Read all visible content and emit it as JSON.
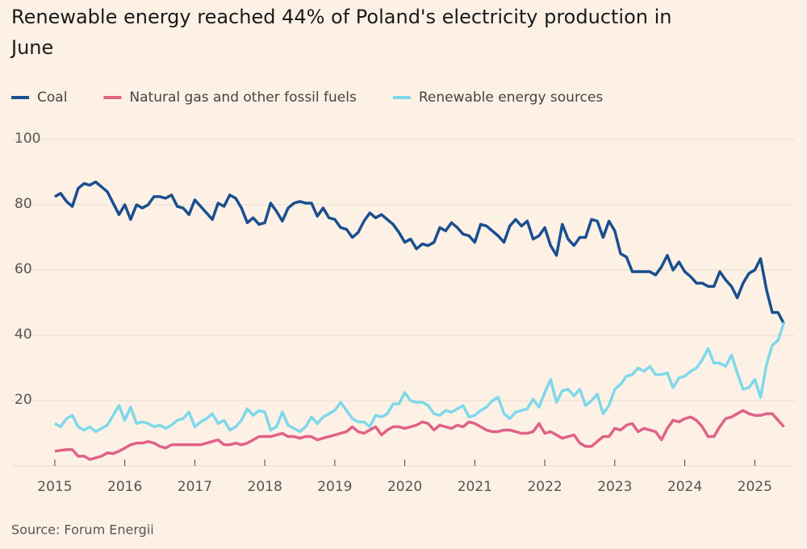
{
  "chart_data": {
    "type": "line",
    "title_lines": [
      "Renewable energy reached 44% of Poland's electricity production in",
      "June"
    ],
    "source": "Source: Forum Energii",
    "x": [
      2015,
      2015.083,
      2015.167,
      2015.25,
      2015.333,
      2015.417,
      2015.5,
      2015.583,
      2015.667,
      2015.75,
      2015.833,
      2015.917,
      2016,
      2016.083,
      2016.167,
      2016.25,
      2016.333,
      2016.417,
      2016.5,
      2016.583,
      2016.667,
      2016.75,
      2016.833,
      2016.917,
      2017,
      2017.083,
      2017.167,
      2017.25,
      2017.333,
      2017.417,
      2017.5,
      2017.583,
      2017.667,
      2017.75,
      2017.833,
      2017.917,
      2018,
      2018.083,
      2018.167,
      2018.25,
      2018.333,
      2018.417,
      2018.5,
      2018.583,
      2018.667,
      2018.75,
      2018.833,
      2018.917,
      2019,
      2019.083,
      2019.167,
      2019.25,
      2019.333,
      2019.417,
      2019.5,
      2019.583,
      2019.667,
      2019.75,
      2019.833,
      2019.917,
      2020,
      2020.083,
      2020.167,
      2020.25,
      2020.333,
      2020.417,
      2020.5,
      2020.583,
      2020.667,
      2020.75,
      2020.833,
      2020.917,
      2021,
      2021.083,
      2021.167,
      2021.25,
      2021.333,
      2021.417,
      2021.5,
      2021.583,
      2021.667,
      2021.75,
      2021.833,
      2021.917,
      2022,
      2022.083,
      2022.167,
      2022.25,
      2022.333,
      2022.417,
      2022.5,
      2022.583,
      2022.667,
      2022.75,
      2022.833,
      2022.917,
      2023,
      2023.083,
      2023.167,
      2023.25,
      2023.333,
      2023.417,
      2023.5,
      2023.583,
      2023.667,
      2023.75,
      2023.833,
      2023.917,
      2024,
      2024.083,
      2024.167,
      2024.25,
      2024.333,
      2024.417,
      2024.5,
      2024.583,
      2024.667,
      2024.75,
      2024.833,
      2024.917,
      2025,
      2025.083,
      2025.167,
      2025.25,
      2025.333,
      2025.417
    ],
    "series": [
      {
        "name": "Coal",
        "color": "#1a4f8f",
        "values": [
          82.5,
          83.5,
          81,
          79.5,
          85,
          86.5,
          86,
          87,
          85.5,
          84,
          80.5,
          77,
          80,
          75.5,
          80,
          79,
          80,
          82.5,
          82.5,
          82,
          83,
          79.5,
          79,
          77,
          81.5,
          79.5,
          77.5,
          75.5,
          80.5,
          79.5,
          83,
          82,
          79,
          74.5,
          76,
          74,
          74.5,
          80.5,
          78,
          75,
          79,
          80.5,
          81,
          80.5,
          80.5,
          76.5,
          79,
          76,
          75.5,
          73,
          72.5,
          70,
          71.5,
          75,
          77.5,
          76,
          77,
          75.5,
          74,
          71.5,
          68.5,
          69.5,
          66.5,
          68,
          67.5,
          68.5,
          73,
          72,
          74.5,
          73,
          71,
          70.5,
          68.5,
          74,
          73.5,
          72,
          70.5,
          68.5,
          73.5,
          75.5,
          73.5,
          75,
          69.5,
          70.5,
          73,
          67.5,
          64.5,
          74,
          69.5,
          67.5,
          70,
          70,
          75.5,
          75,
          70,
          75,
          72,
          65,
          64,
          59.5,
          59.5,
          59.5,
          59.5,
          58.5,
          61,
          64.5,
          60,
          62.5,
          59.5,
          58,
          56,
          56,
          55,
          55,
          59.5,
          57,
          55,
          51.5,
          56,
          59,
          60,
          63.5,
          54,
          47,
          47,
          43.5
        ]
      },
      {
        "name": "Natural gas and other fossil fuels",
        "color": "#e06287",
        "values": [
          4.5,
          4.8,
          5,
          5,
          3,
          3,
          2,
          2.5,
          3,
          4,
          3.8,
          4.5,
          5.5,
          6.5,
          7,
          7,
          7.5,
          7,
          6,
          5.5,
          6.5,
          6.5,
          6.5,
          6.5,
          6.5,
          6.5,
          7,
          7.5,
          8,
          6.5,
          6.5,
          7,
          6.5,
          7,
          8,
          9,
          9,
          9,
          9.5,
          10,
          9,
          9,
          8.5,
          9,
          9,
          8,
          8.5,
          9,
          9.5,
          10,
          10.5,
          12,
          10.5,
          10,
          11,
          12,
          9.5,
          11,
          12,
          12,
          11.5,
          12,
          12.5,
          13.5,
          13,
          11,
          12.5,
          12,
          11.5,
          12.5,
          12,
          13.5,
          13,
          12,
          11,
          10.5,
          10.5,
          11,
          11,
          10.5,
          10,
          10,
          10.5,
          13,
          10,
          10.5,
          9.5,
          8.5,
          9,
          9.5,
          7,
          6,
          6,
          7.5,
          9,
          9,
          11.5,
          11,
          12.5,
          13,
          10.5,
          11.5,
          11,
          10.5,
          8,
          11.5,
          14,
          13.5,
          14.5,
          15,
          14,
          12,
          9,
          9,
          12,
          14.5,
          15,
          16,
          17,
          16,
          15.5,
          15.5,
          16,
          16,
          14,
          12
        ]
      },
      {
        "name": "Renewable energy sources",
        "color": "#7fd8ea",
        "values": [
          13,
          12,
          14.5,
          15.5,
          12,
          11,
          12,
          10.5,
          11.5,
          12.5,
          15.5,
          18.5,
          14,
          18,
          13,
          13.5,
          13,
          12,
          12.5,
          11.5,
          12.5,
          14,
          14.5,
          16.5,
          12,
          13.5,
          14.5,
          16,
          13,
          14,
          11,
          12,
          14,
          17.5,
          15.5,
          17,
          16.5,
          11,
          12,
          16.5,
          12.5,
          11.5,
          10.5,
          12,
          15,
          13,
          15,
          16,
          17,
          19.5,
          17,
          14.5,
          13.5,
          13.5,
          12,
          15.5,
          15,
          16,
          19,
          19,
          22.5,
          20,
          19.5,
          19.5,
          18.5,
          16,
          15.5,
          17,
          16.5,
          17.5,
          18.5,
          15,
          15.5,
          17,
          18,
          20,
          21,
          16,
          14.5,
          16.5,
          17,
          17.5,
          20.5,
          18,
          22.5,
          26.5,
          19.5,
          23,
          23.5,
          21.5,
          23.5,
          18.5,
          20,
          22,
          16,
          18.5,
          23.5,
          25,
          27.5,
          28,
          30,
          29,
          30.5,
          28,
          28,
          28.5,
          24,
          27,
          27.5,
          29,
          30,
          32.5,
          36,
          31.5,
          31.5,
          30.5,
          34,
          28.5,
          23.5,
          24,
          26.5,
          21,
          31,
          37,
          38.5,
          44
        ]
      }
    ],
    "xlim": [
      2014.92,
      2025.55
    ],
    "xticks": [
      2015,
      2016,
      2017,
      2018,
      2019,
      2020,
      2021,
      2022,
      2023,
      2024,
      2025
    ],
    "ylim": [
      0,
      100
    ],
    "yticks": [
      20,
      40,
      60,
      80,
      100
    ],
    "grid": true
  }
}
